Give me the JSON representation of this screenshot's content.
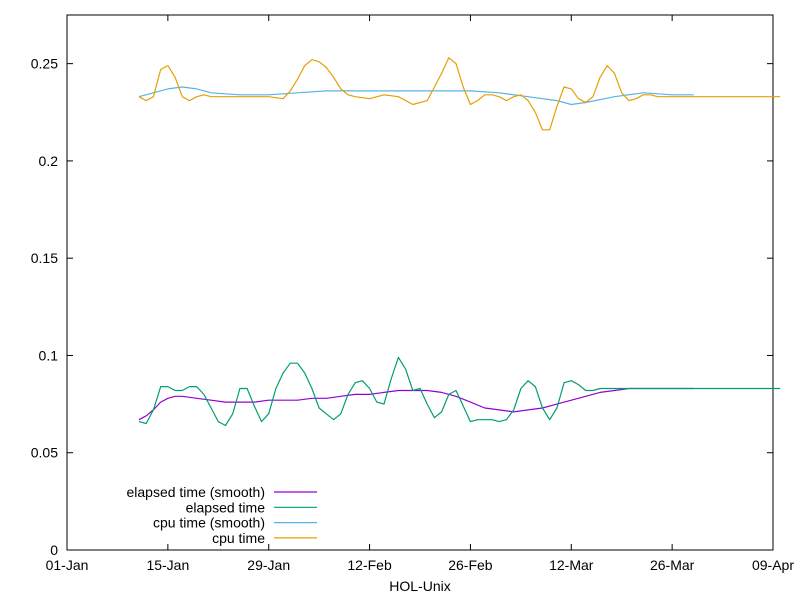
{
  "chart_data": {
    "type": "line",
    "title": "",
    "xlabel": "HOL-Unix",
    "ylabel": "",
    "xlim": [
      "01-Jan",
      "09-Apr"
    ],
    "ylim": [
      0,
      0.275
    ],
    "x_ticks": [
      "01-Jan",
      "15-Jan",
      "29-Jan",
      "12-Feb",
      "26-Feb",
      "12-Mar",
      "26-Mar",
      "09-Apr"
    ],
    "y_ticks": [
      "0",
      "0.05",
      "0.1",
      "0.15",
      "0.2",
      "0.25"
    ],
    "grid": false,
    "legend_position": "bottom-left",
    "series": [
      {
        "name": "elapsed time (smooth)",
        "color": "#9400d3",
        "x": [
          10,
          11,
          12,
          13,
          14,
          15,
          16,
          18,
          20,
          22,
          24,
          26,
          28,
          30,
          32,
          34,
          36,
          38,
          40,
          42,
          44,
          46,
          48,
          50,
          52,
          54,
          56,
          58,
          60,
          62,
          64,
          66,
          68,
          70,
          72,
          74,
          76,
          78,
          80,
          82,
          84,
          86,
          87
        ],
        "values": [
          0.067,
          0.069,
          0.072,
          0.076,
          0.078,
          0.079,
          0.079,
          0.078,
          0.077,
          0.076,
          0.076,
          0.076,
          0.077,
          0.077,
          0.077,
          0.078,
          0.078,
          0.079,
          0.08,
          0.08,
          0.081,
          0.082,
          0.082,
          0.082,
          0.081,
          0.079,
          0.076,
          0.073,
          0.072,
          0.071,
          0.072,
          0.073,
          0.075,
          0.077,
          0.079,
          0.081,
          0.082,
          0.083,
          0.083,
          0.083,
          0.083,
          0.083,
          0.083
        ]
      },
      {
        "name": "elapsed time",
        "color": "#009e73",
        "x": [
          10,
          11,
          12,
          13,
          14,
          15,
          16,
          17,
          18,
          19,
          20,
          21,
          22,
          23,
          24,
          25,
          26,
          27,
          28,
          29,
          30,
          31,
          32,
          33,
          34,
          35,
          36,
          37,
          38,
          39,
          40,
          41,
          42,
          43,
          44,
          45,
          46,
          47,
          48,
          49,
          50,
          51,
          52,
          53,
          54,
          55,
          56,
          57,
          58,
          59,
          60,
          61,
          62,
          63,
          64,
          65,
          66,
          67,
          68,
          69,
          70,
          71,
          72,
          73,
          74,
          75,
          76,
          77,
          78,
          79,
          80,
          81,
          82,
          83,
          84,
          85,
          86,
          87,
          88,
          89,
          90,
          91,
          92,
          93,
          94,
          95,
          96,
          97,
          98,
          99
        ],
        "values": [
          0.066,
          0.065,
          0.072,
          0.084,
          0.084,
          0.082,
          0.082,
          0.084,
          0.084,
          0.08,
          0.073,
          0.066,
          0.064,
          0.07,
          0.083,
          0.083,
          0.074,
          0.066,
          0.07,
          0.083,
          0.091,
          0.096,
          0.096,
          0.091,
          0.083,
          0.073,
          0.07,
          0.067,
          0.07,
          0.08,
          0.086,
          0.087,
          0.083,
          0.076,
          0.075,
          0.088,
          0.099,
          0.093,
          0.082,
          0.083,
          0.075,
          0.068,
          0.071,
          0.08,
          0.082,
          0.074,
          0.066,
          0.067,
          0.067,
          0.067,
          0.066,
          0.067,
          0.072,
          0.083,
          0.087,
          0.084,
          0.073,
          0.067,
          0.073,
          0.086,
          0.087,
          0.085,
          0.082,
          0.082,
          0.083,
          0.083,
          0.083,
          0.083,
          0.083,
          0.083,
          0.083,
          0.083,
          0.083,
          0.083,
          0.083,
          0.083,
          0.083,
          0.083,
          0.083,
          0.083,
          0.083,
          0.083,
          0.083,
          0.083,
          0.083,
          0.083,
          0.083,
          0.083,
          0.083,
          0.083
        ]
      },
      {
        "name": "cpu time (smooth)",
        "color": "#56b4e9",
        "x": [
          10,
          12,
          14,
          16,
          18,
          20,
          24,
          28,
          32,
          36,
          40,
          44,
          48,
          52,
          56,
          60,
          64,
          68,
          70,
          72,
          76,
          80,
          84,
          87
        ],
        "values": [
          0.233,
          0.235,
          0.237,
          0.238,
          0.237,
          0.235,
          0.234,
          0.234,
          0.235,
          0.236,
          0.236,
          0.236,
          0.236,
          0.236,
          0.236,
          0.235,
          0.233,
          0.231,
          0.229,
          0.23,
          0.233,
          0.235,
          0.234,
          0.234
        ]
      },
      {
        "name": "cpu time",
        "color": "#e69f00",
        "x": [
          10,
          11,
          12,
          13,
          14,
          15,
          16,
          17,
          18,
          19,
          20,
          22,
          24,
          26,
          28,
          30,
          31,
          32,
          33,
          34,
          35,
          36,
          37,
          38,
          39,
          40,
          42,
          44,
          46,
          48,
          50,
          52,
          53,
          54,
          55,
          56,
          57,
          58,
          59,
          60,
          61,
          62,
          63,
          64,
          65,
          66,
          67,
          68,
          69,
          70,
          71,
          72,
          73,
          74,
          75,
          76,
          77,
          78,
          79,
          80,
          81,
          82,
          83,
          84,
          85,
          86,
          87,
          88,
          89,
          90,
          91,
          92,
          93,
          94,
          95,
          96,
          97,
          98,
          99
        ],
        "values": [
          0.233,
          0.231,
          0.233,
          0.247,
          0.249,
          0.243,
          0.233,
          0.231,
          0.233,
          0.234,
          0.233,
          0.233,
          0.233,
          0.233,
          0.233,
          0.232,
          0.236,
          0.242,
          0.249,
          0.252,
          0.251,
          0.248,
          0.243,
          0.237,
          0.234,
          0.233,
          0.232,
          0.234,
          0.233,
          0.229,
          0.231,
          0.245,
          0.253,
          0.25,
          0.238,
          0.229,
          0.231,
          0.234,
          0.234,
          0.233,
          0.231,
          0.233,
          0.234,
          0.231,
          0.225,
          0.216,
          0.216,
          0.228,
          0.238,
          0.237,
          0.232,
          0.23,
          0.233,
          0.243,
          0.249,
          0.245,
          0.235,
          0.231,
          0.232,
          0.234,
          0.234,
          0.233,
          0.233,
          0.233,
          0.233,
          0.233,
          0.233,
          0.233,
          0.233,
          0.233,
          0.233,
          0.233,
          0.233,
          0.233,
          0.233,
          0.233,
          0.233,
          0.233,
          0.233
        ]
      }
    ]
  }
}
